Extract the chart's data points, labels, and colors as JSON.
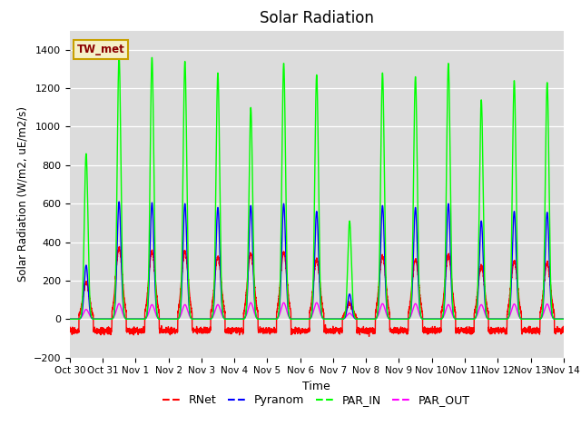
{
  "title": "Solar Radiation",
  "ylabel": "Solar Radiation (W/m2, uE/m2/s)",
  "xlabel": "Time",
  "ylim": [
    -200,
    1500
  ],
  "yticks": [
    -200,
    0,
    200,
    400,
    600,
    800,
    1000,
    1200,
    1400
  ],
  "xlim_start": 0,
  "xlim_end": 15,
  "xtick_labels": [
    "Oct 30",
    "Oct 31",
    "Nov 1",
    "Nov 2",
    "Nov 3",
    "Nov 4",
    "Nov 5",
    "Nov 6",
    "Nov 7",
    "Nov 8",
    "Nov 9",
    "Nov 10",
    "Nov 11",
    "Nov 12",
    "Nov 13",
    "Nov 14"
  ],
  "station_label": "TW_met",
  "bg_color": "#dcdcdc",
  "line_width": 1.0,
  "grid_color": "white",
  "title_fontsize": 12,
  "peaks_par_in": [
    860,
    1370,
    1360,
    1340,
    1280,
    1100,
    1330,
    1270,
    510,
    1280,
    1260,
    1330,
    1140,
    1240,
    1230
  ],
  "peaks_pyranom": [
    280,
    610,
    605,
    600,
    580,
    590,
    600,
    560,
    130,
    590,
    580,
    600,
    510,
    560,
    555
  ],
  "peaks_rnet": [
    190,
    370,
    350,
    350,
    325,
    340,
    345,
    310,
    80,
    330,
    310,
    330,
    275,
    300,
    290
  ],
  "peaks_par_out": [
    50,
    80,
    75,
    75,
    75,
    85,
    85,
    85,
    30,
    80,
    80,
    75,
    75,
    78,
    78
  ],
  "night_rnet": -60
}
